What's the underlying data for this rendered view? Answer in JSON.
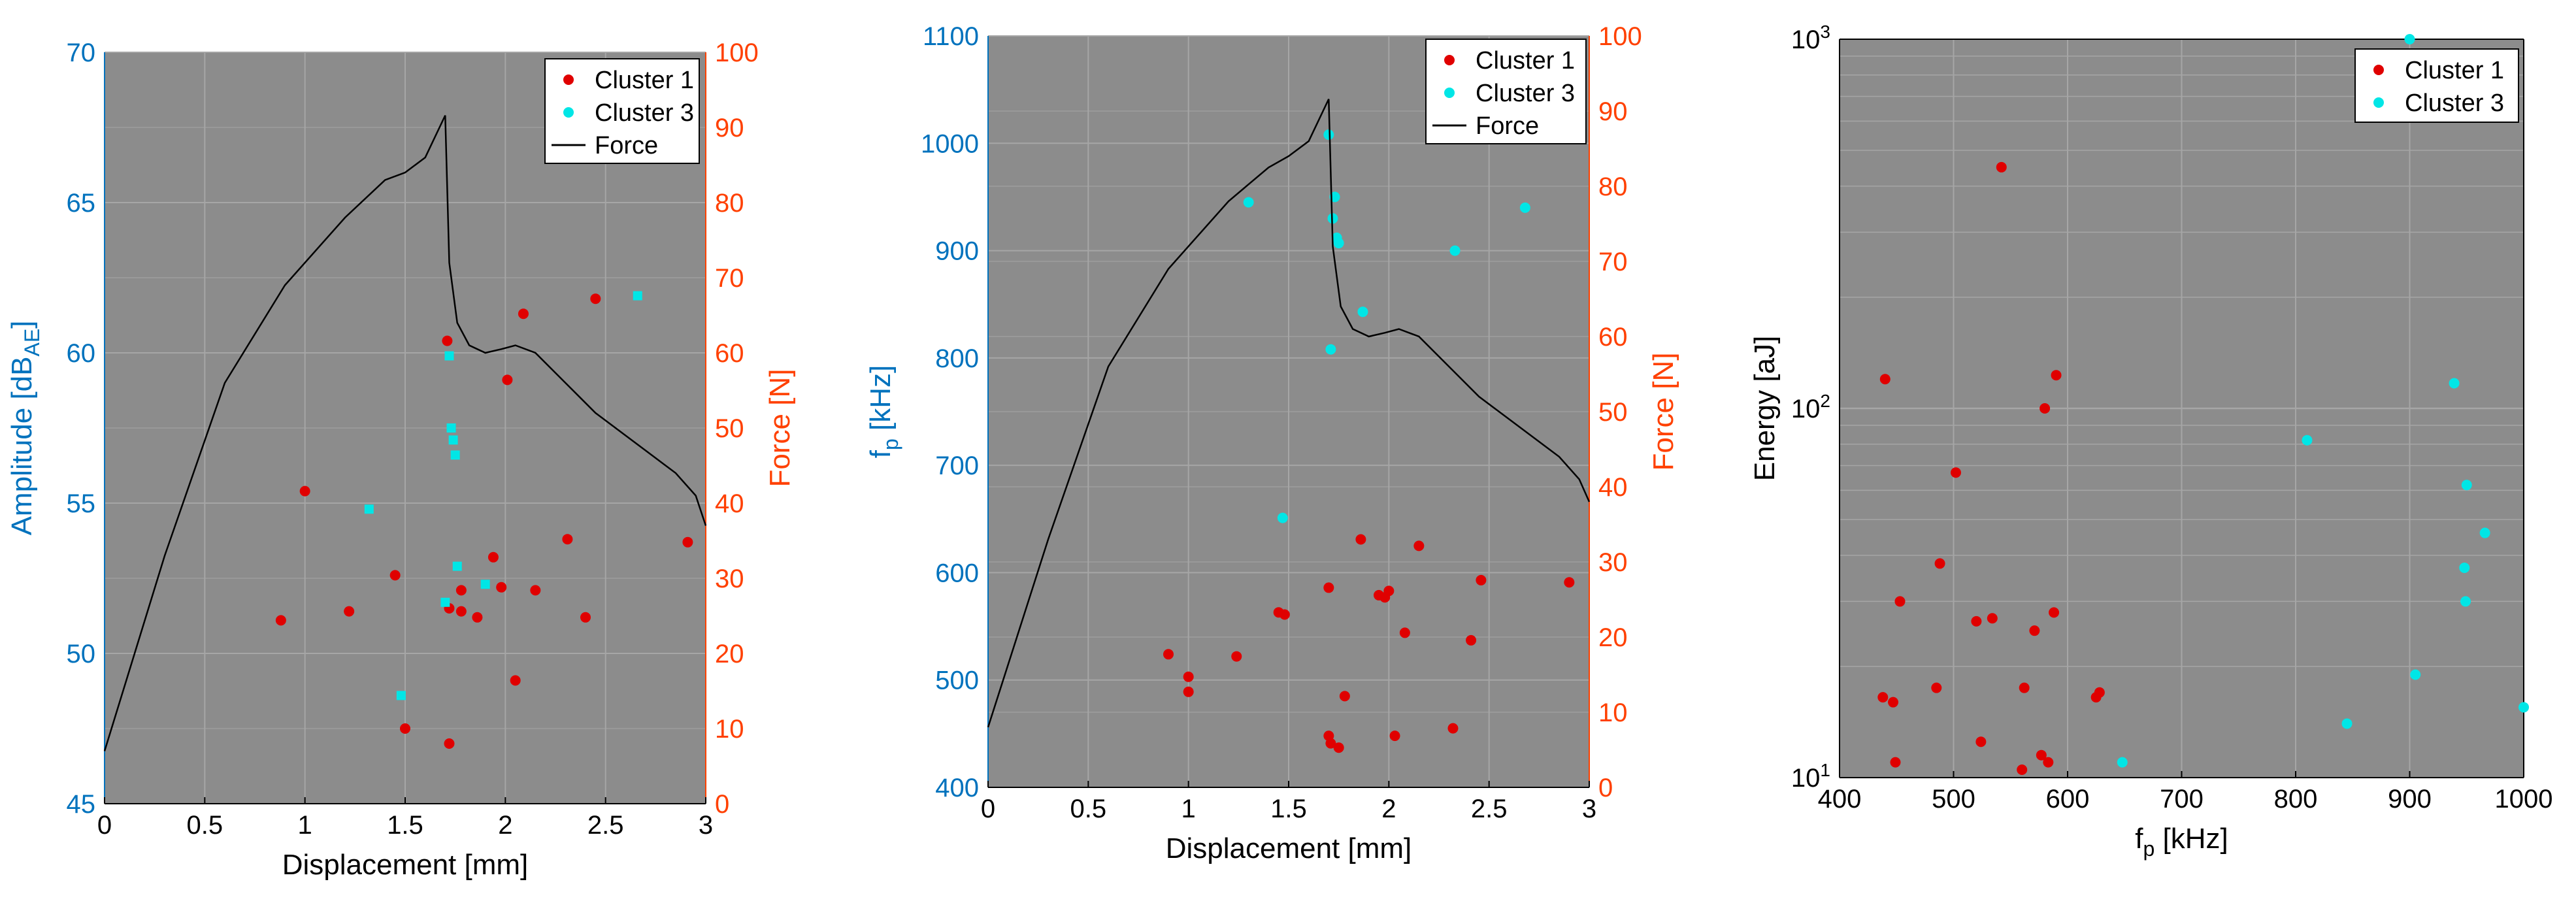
{
  "colors": {
    "background": "#8c8c8c",
    "grid": "#a6a6a6",
    "left_axis": "#0072bd",
    "right_axis": "#ff4000",
    "cluster1": "#e00000",
    "cluster3": "#00e6e6",
    "force": "#000000",
    "black": "#000000"
  },
  "chart_data": [
    {
      "type": "scatter",
      "name": "amplitude-vs-displacement",
      "xlabel": "Displacement [mm]",
      "ylabel": "Amplitude [dB",
      "ylabel_sub": "AE",
      "ylabel_suffix": "]",
      "y2label": "Force [N]",
      "xlim": [
        0,
        3
      ],
      "ylim": [
        45,
        70
      ],
      "y2lim": [
        0,
        100
      ],
      "xticks": [
        0,
        0.5,
        1,
        1.5,
        2,
        2.5,
        3
      ],
      "xticklabels": [
        "0",
        "0.5",
        "1",
        "1.5",
        "2",
        "2.5",
        "3"
      ],
      "yticks": [
        45,
        50,
        55,
        60,
        65,
        70
      ],
      "yticklabels": [
        "45",
        "50",
        "55",
        "60",
        "65",
        "70"
      ],
      "y2ticks": [
        0,
        10,
        20,
        30,
        40,
        50,
        60,
        70,
        80,
        90,
        100
      ],
      "y2ticklabels": [
        "0",
        "10",
        "20",
        "30",
        "40",
        "50",
        "60",
        "70",
        "80",
        "90",
        "100"
      ],
      "legend": {
        "placement": "top-right",
        "entries": [
          "Cluster 1",
          "Cluster 3",
          "Force"
        ]
      },
      "series": [
        {
          "name": "Cluster 1",
          "marker": "dot",
          "points": [
            [
              0.88,
              51.1
            ],
            [
              1.0,
              55.4
            ],
            [
              1.22,
              51.4
            ],
            [
              1.45,
              52.6
            ],
            [
              1.5,
              47.5
            ],
            [
              1.71,
              60.4
            ],
            [
              1.72,
              47
            ],
            [
              1.72,
              51.5
            ],
            [
              1.78,
              51.4
            ],
            [
              1.78,
              52.1
            ],
            [
              1.86,
              51.2
            ],
            [
              1.94,
              53.2
            ],
            [
              1.98,
              52.2
            ],
            [
              2.01,
              59.1
            ],
            [
              2.05,
              49.1
            ],
            [
              2.09,
              61.3
            ],
            [
              2.15,
              52.1
            ],
            [
              2.31,
              53.8
            ],
            [
              2.4,
              51.2
            ],
            [
              2.45,
              61.8
            ],
            [
              2.91,
              53.7
            ]
          ]
        },
        {
          "name": "Cluster 3",
          "marker": "square-dot",
          "points": [
            [
              1.32,
              54.8
            ],
            [
              1.48,
              48.6
            ],
            [
              1.7,
              51.7
            ],
            [
              1.72,
              59.9
            ],
            [
              1.73,
              57.5
            ],
            [
              1.74,
              57.1
            ],
            [
              1.75,
              56.6
            ],
            [
              1.76,
              52.9
            ],
            [
              1.9,
              52.3
            ],
            [
              2.66,
              61.9
            ]
          ]
        },
        {
          "name": "Force",
          "marker": "line",
          "axis": "right",
          "points": [
            [
              0,
              7
            ],
            [
              0.3,
              33
            ],
            [
              0.6,
              56
            ],
            [
              0.9,
              69
            ],
            [
              1.2,
              78
            ],
            [
              1.4,
              83
            ],
            [
              1.5,
              84
            ],
            [
              1.6,
              86
            ],
            [
              1.7,
              91.6
            ],
            [
              1.72,
              72
            ],
            [
              1.76,
              64
            ],
            [
              1.82,
              61
            ],
            [
              1.9,
              60
            ],
            [
              1.98,
              60.5
            ],
            [
              2.05,
              61
            ],
            [
              2.15,
              60
            ],
            [
              2.3,
              56
            ],
            [
              2.45,
              52
            ],
            [
              2.6,
              49
            ],
            [
              2.75,
              46
            ],
            [
              2.85,
              44
            ],
            [
              2.95,
              41
            ],
            [
              3.0,
              37
            ]
          ]
        }
      ]
    },
    {
      "type": "scatter",
      "name": "peak-frequency-vs-displacement",
      "xlabel": "Displacement [mm]",
      "ylabel": "f",
      "ylabel_sub": "p",
      "ylabel_suffix": " [kHz]",
      "y2label": "Force [N]",
      "xlim": [
        0,
        3
      ],
      "ylim": [
        400,
        1100
      ],
      "y2lim": [
        0,
        100
      ],
      "xticks": [
        0,
        0.5,
        1,
        1.5,
        2,
        2.5,
        3
      ],
      "xticklabels": [
        "0",
        "0.5",
        "1",
        "1.5",
        "2",
        "2.5",
        "3"
      ],
      "yticks": [
        400,
        500,
        600,
        700,
        800,
        900,
        1000,
        1100
      ],
      "yticklabels": [
        "400",
        "500",
        "600",
        "700",
        "800",
        "900",
        "1000",
        "1100"
      ],
      "y2ticks": [
        0,
        10,
        20,
        30,
        40,
        50,
        60,
        70,
        80,
        90,
        100
      ],
      "y2ticklabels": [
        "0",
        "10",
        "20",
        "30",
        "40",
        "50",
        "60",
        "70",
        "80",
        "90",
        "100"
      ],
      "legend": {
        "placement": "top-right",
        "entries": [
          "Cluster 1",
          "Cluster 3",
          "Force"
        ]
      },
      "series": [
        {
          "name": "Cluster 1",
          "marker": "dot",
          "points": [
            [
              0.9,
              524
            ],
            [
              1.0,
              503
            ],
            [
              1.0,
              489
            ],
            [
              1.24,
              522
            ],
            [
              1.45,
              563
            ],
            [
              1.48,
              561
            ],
            [
              1.7,
              586
            ],
            [
              1.7,
              448
            ],
            [
              1.71,
              441
            ],
            [
              1.75,
              437
            ],
            [
              1.78,
              485
            ],
            [
              1.86,
              631
            ],
            [
              1.95,
              579
            ],
            [
              1.98,
              577
            ],
            [
              2.0,
              583
            ],
            [
              2.03,
              448
            ],
            [
              2.08,
              544
            ],
            [
              2.15,
              625
            ],
            [
              2.32,
              455
            ],
            [
              2.41,
              537
            ],
            [
              2.46,
              593
            ],
            [
              2.9,
              591
            ]
          ]
        },
        {
          "name": "Cluster 3",
          "marker": "dot",
          "points": [
            [
              1.3,
              945
            ],
            [
              1.47,
              651
            ],
            [
              1.7,
              1008
            ],
            [
              1.71,
              808
            ],
            [
              1.72,
              930
            ],
            [
              1.73,
              950
            ],
            [
              1.74,
              912
            ],
            [
              1.75,
              907
            ],
            [
              1.87,
              843
            ],
            [
              2.33,
              900
            ],
            [
              2.68,
              940
            ]
          ]
        },
        {
          "name": "Force",
          "marker": "line",
          "axis": "right",
          "points": [
            [
              0,
              8
            ],
            [
              0.3,
              33
            ],
            [
              0.6,
              56
            ],
            [
              0.9,
              69
            ],
            [
              1.2,
              78
            ],
            [
              1.4,
              82.5
            ],
            [
              1.5,
              84
            ],
            [
              1.6,
              86
            ],
            [
              1.7,
              91.6
            ],
            [
              1.72,
              72
            ],
            [
              1.76,
              64
            ],
            [
              1.82,
              61
            ],
            [
              1.9,
              60
            ],
            [
              1.98,
              60.5
            ],
            [
              2.05,
              61
            ],
            [
              2.15,
              60
            ],
            [
              2.3,
              56
            ],
            [
              2.45,
              52
            ],
            [
              2.6,
              49
            ],
            [
              2.75,
              46
            ],
            [
              2.85,
              44
            ],
            [
              2.95,
              41
            ],
            [
              3.0,
              38
            ]
          ]
        }
      ]
    },
    {
      "type": "scatter",
      "name": "energy-vs-peak-frequency",
      "xlabel": "f",
      "xlabel_sub": "p",
      "xlabel_suffix": " [kHz]",
      "ylabel": "Energy [aJ]",
      "xlim": [
        400,
        1000
      ],
      "ylim": [
        10,
        1000
      ],
      "yscale": "log",
      "xticks": [
        400,
        500,
        600,
        700,
        800,
        900,
        1000
      ],
      "xticklabels": [
        "400",
        "500",
        "600",
        "700",
        "800",
        "900",
        "1000"
      ],
      "yticks": [
        10,
        100,
        1000
      ],
      "yticklabels_base": "10",
      "yticklabels_exp": [
        "1",
        "2",
        "3"
      ],
      "legend": {
        "placement": "top-right",
        "entries": [
          "Cluster 1",
          "Cluster 3"
        ]
      },
      "series": [
        {
          "name": "Cluster 1",
          "marker": "dot",
          "points": [
            [
              438,
              16.5
            ],
            [
              440,
              120
            ],
            [
              447,
              16
            ],
            [
              449,
              11
            ],
            [
              453,
              30
            ],
            [
              485,
              17.5
            ],
            [
              488,
              38
            ],
            [
              502,
              67
            ],
            [
              520,
              26.5
            ],
            [
              524,
              12.5
            ],
            [
              534,
              27
            ],
            [
              542,
              450
            ],
            [
              560,
              10.5
            ],
            [
              562,
              17.5
            ],
            [
              571,
              25
            ],
            [
              577,
              11.5
            ],
            [
              580,
              100
            ],
            [
              583,
              11
            ],
            [
              588,
              28
            ],
            [
              590,
              123
            ],
            [
              625,
              16.5
            ],
            [
              628,
              17
            ]
          ]
        },
        {
          "name": "Cluster 3",
          "marker": "dot",
          "points": [
            [
              648,
              11
            ],
            [
              810,
              82
            ],
            [
              845,
              14
            ],
            [
              900,
              1000
            ],
            [
              905,
              19
            ],
            [
              939,
              117
            ],
            [
              948,
              37
            ],
            [
              949,
              30
            ],
            [
              950,
              62
            ],
            [
              966,
              46
            ],
            [
              1000,
              15.5
            ]
          ]
        }
      ]
    }
  ]
}
